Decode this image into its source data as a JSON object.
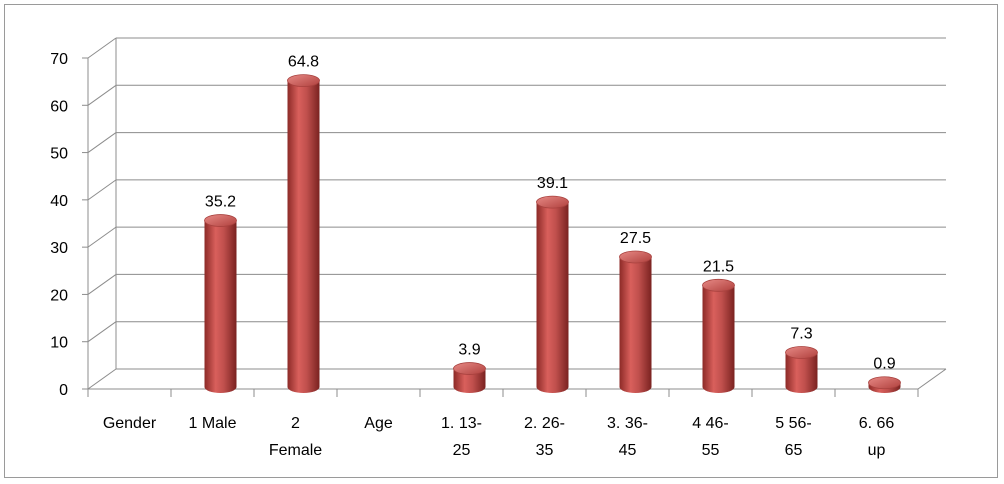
{
  "chart_data": {
    "type": "bar",
    "title": "",
    "xlabel": "",
    "ylabel": "",
    "ylim": [
      0,
      70
    ],
    "yticks": [
      "0",
      "10",
      "20",
      "30",
      "40",
      "50",
      "60",
      "70"
    ],
    "grid": true,
    "legend": "none",
    "bar_color": "#c0504d",
    "categories": [
      [
        "Gender"
      ],
      [
        "1 Male"
      ],
      [
        "2",
        "Female"
      ],
      [
        "Age"
      ],
      [
        "1. 13-",
        "25"
      ],
      [
        "2. 26-",
        "35"
      ],
      [
        "3. 36-",
        "45"
      ],
      [
        "4 46-",
        "55"
      ],
      [
        "5 56-",
        "65"
      ],
      [
        "6. 66",
        "up"
      ]
    ],
    "values": [
      null,
      35.2,
      64.8,
      null,
      3.9,
      39.1,
      27.5,
      21.5,
      7.3,
      0.9
    ],
    "value_labels": [
      "",
      "35.2",
      "64.8",
      "",
      "3.9",
      "39.1",
      "27.5",
      "21.5",
      "7.3",
      "0.9"
    ]
  }
}
